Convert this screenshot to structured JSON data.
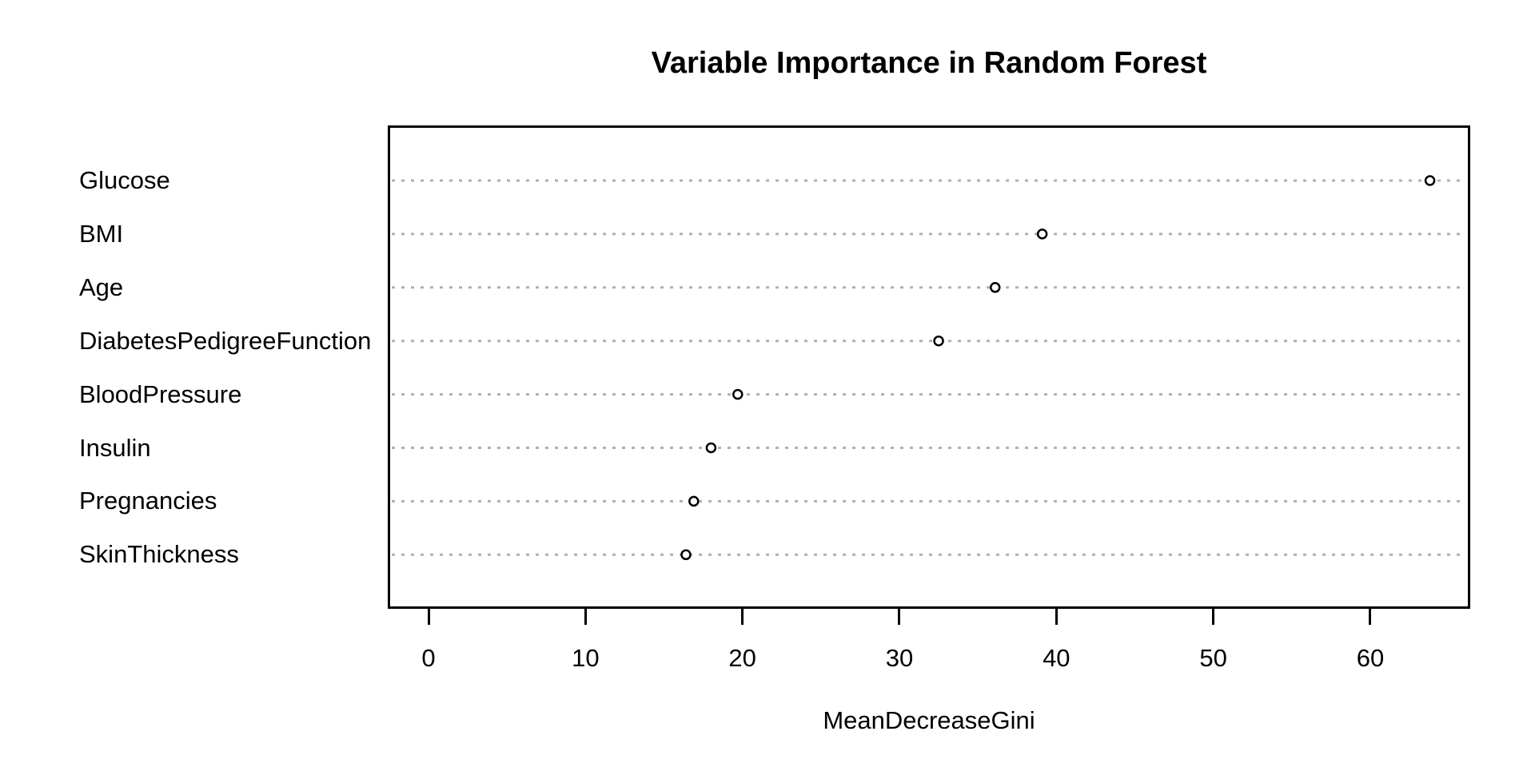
{
  "title": "Variable Importance in Random Forest",
  "chart_data": {
    "type": "scatter",
    "subtype": "dot-chart",
    "title": "Variable Importance in Random Forest",
    "xlabel": "MeanDecreaseGini",
    "ylabel": "",
    "categories": [
      "Glucose",
      "BMI",
      "Age",
      "DiabetesPedigreeFunction",
      "BloodPressure",
      "Insulin",
      "Pregnancies",
      "SkinThickness"
    ],
    "values": [
      63.8,
      39.1,
      36.1,
      32.5,
      19.7,
      18.0,
      16.9,
      16.4
    ],
    "x_ticks": [
      "0",
      "10",
      "20",
      "30",
      "40",
      "50",
      "60"
    ],
    "x_tick_values": [
      0,
      10,
      20,
      30,
      40,
      50,
      60
    ],
    "xlim": [
      -2.6,
      66.4
    ],
    "grid": "horizontal dotted, one line per category",
    "legend": "none",
    "marker": "open-circle",
    "colors": {
      "background": "#ffffff",
      "axis": "#000000",
      "text": "#000000",
      "gridline": "#b0b0b0",
      "marker_stroke": "#000000",
      "marker_fill": "#ffffff"
    }
  }
}
